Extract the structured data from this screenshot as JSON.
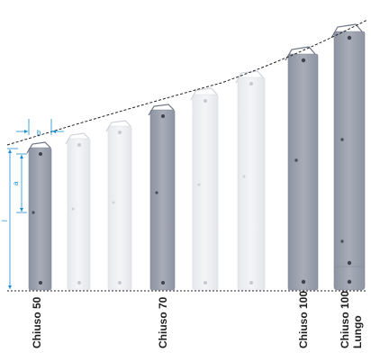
{
  "dimensions": {
    "width_letter": "b",
    "short_height_letter": "a",
    "total_height_letter": "l"
  },
  "labels": {
    "chiuso_50": "Chiuso 50",
    "chiuso_70": "Chiuso 70",
    "chiuso_100": "Chiuso 100",
    "chiuso_100_lungo_line1": "Chiuso 100",
    "chiuso_100_lungo_line2": "Lungo"
  },
  "colors": {
    "dark_slat": "#9aa0ad",
    "light_slat": "#eceef1",
    "dimension_line": "#1a8fd0",
    "curve": "#222222",
    "label": "#1e1e1e"
  }
}
